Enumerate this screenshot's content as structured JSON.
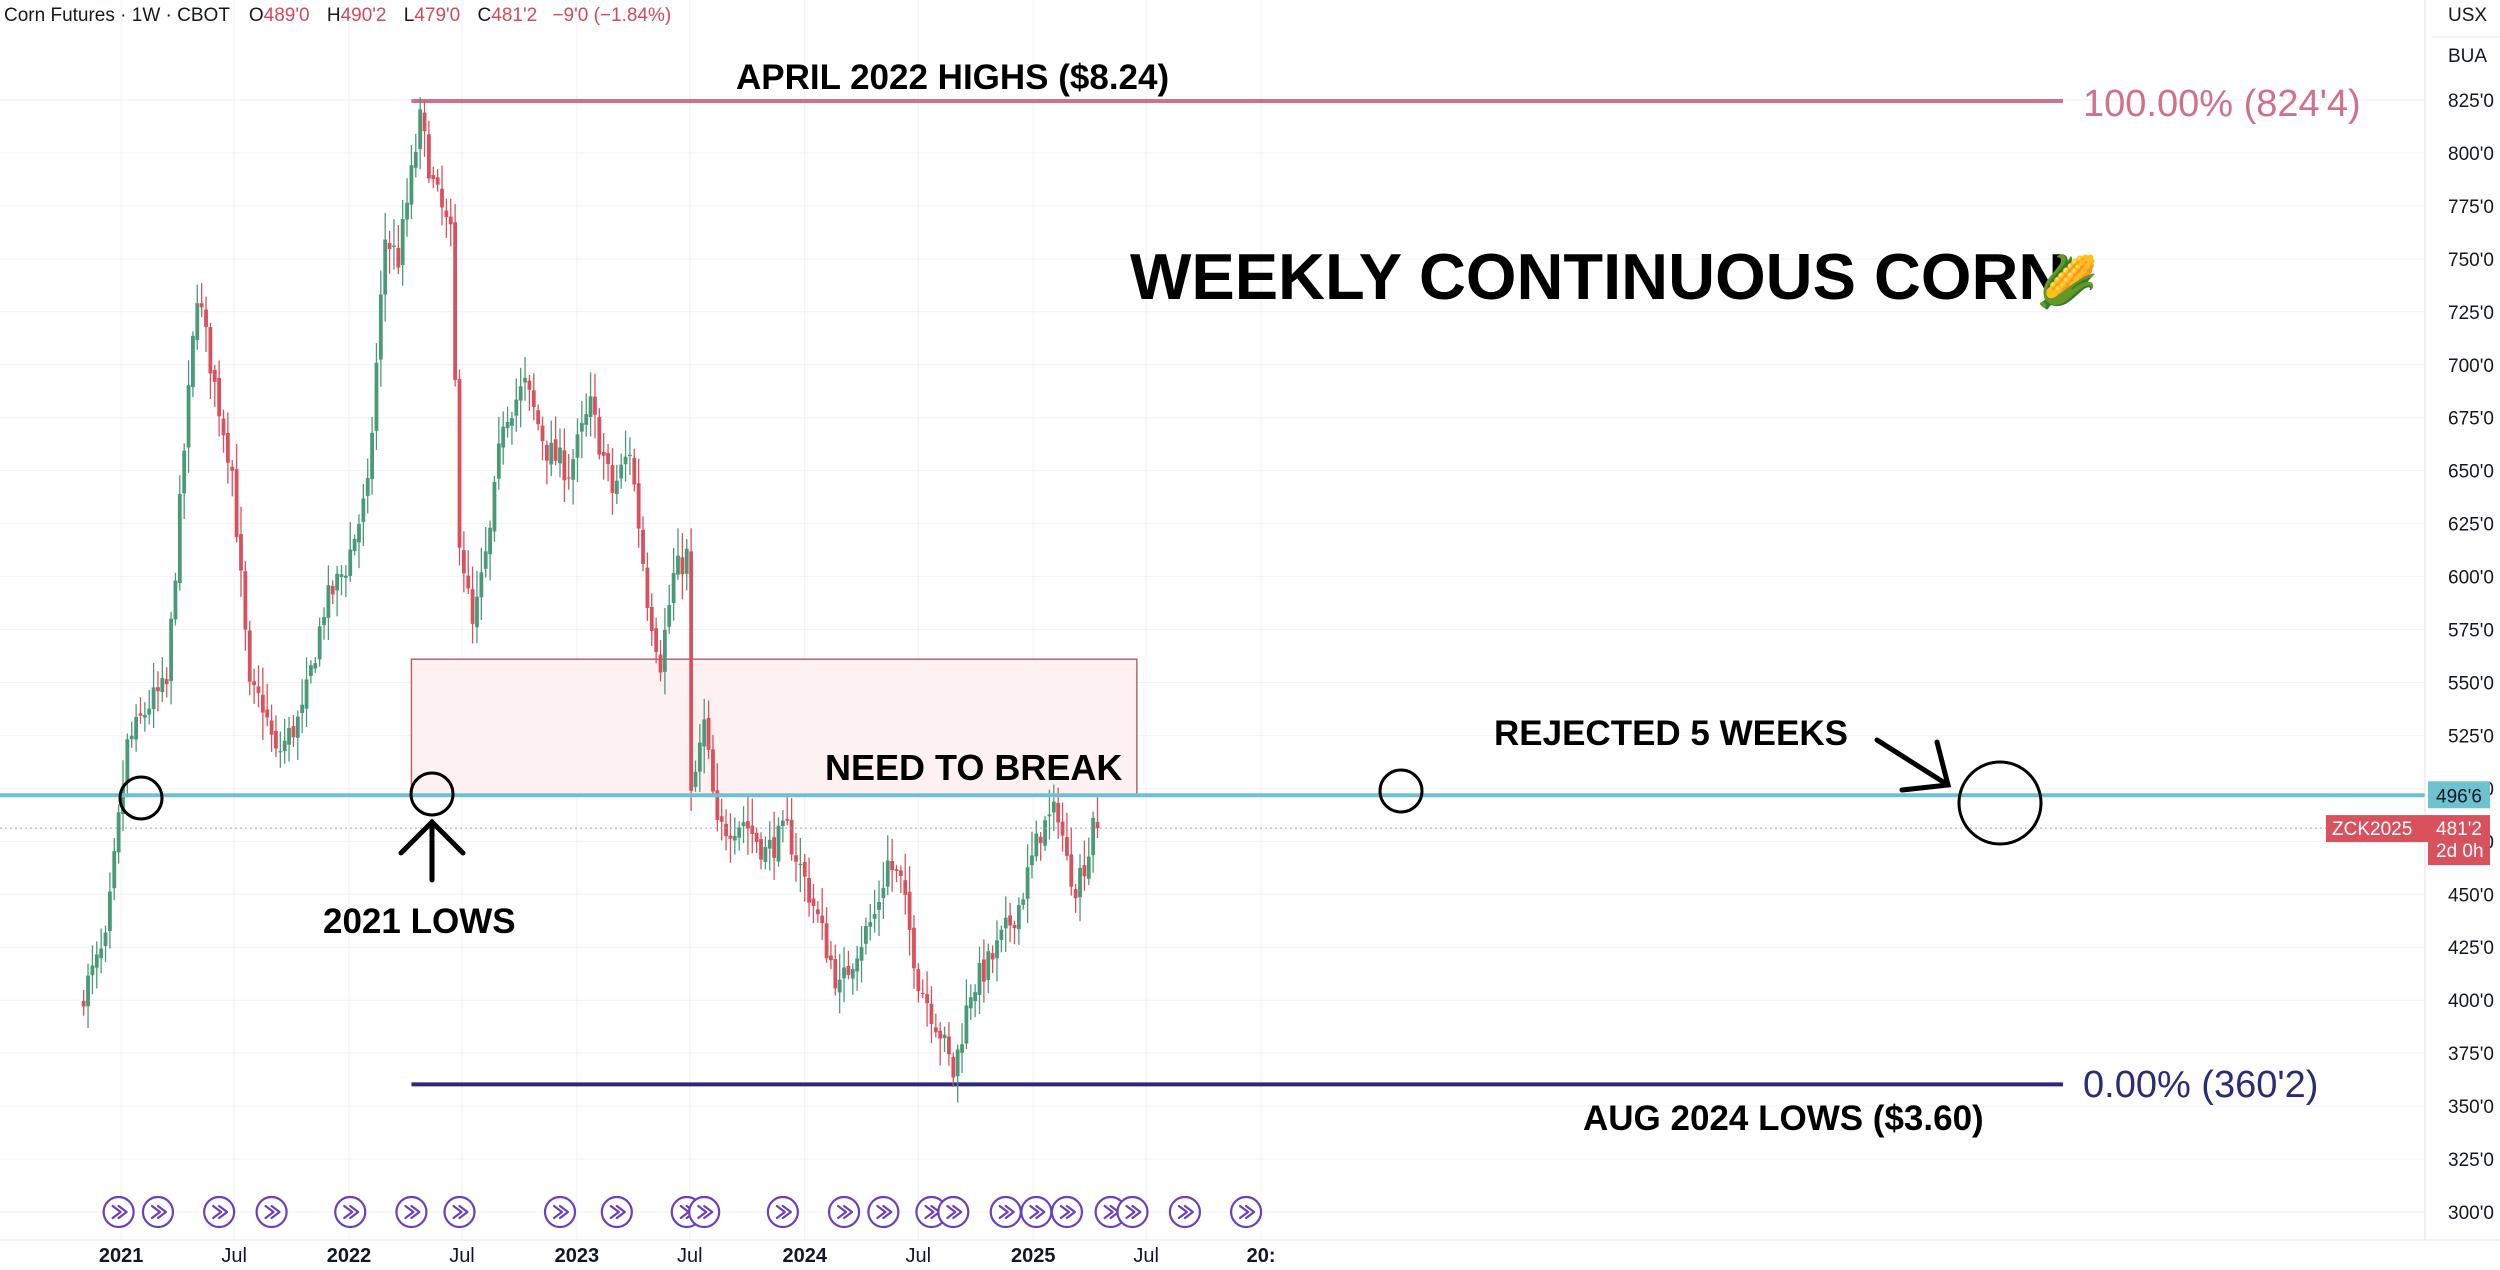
{
  "header": {
    "symbol_desc": "Corn Futures · 1W · CBOT",
    "open_key": "O",
    "open_val": "489'0",
    "high_key": "H",
    "high_val": "490'2",
    "low_key": "L",
    "low_val": "479'0",
    "close_key": "C",
    "close_val": "481'2",
    "change": "−9'0 (−1.84%)"
  },
  "price_axis": {
    "currency": "USX",
    "unit": "BUA",
    "ticks": [
      "825'0",
      "800'0",
      "775'0",
      "750'0",
      "725'0",
      "700'0",
      "675'0",
      "650'0",
      "625'0",
      "600'0",
      "575'0",
      "550'0",
      "525'0",
      "500'0",
      "475'0",
      "450'0",
      "425'0",
      "400'0",
      "375'0",
      "350'0",
      "325'0",
      "300'0"
    ],
    "level_tag": "496'6",
    "symbol_tag": "ZCK2025",
    "last_price_tag": "481'2",
    "countdown_tag": "2d 0h"
  },
  "time_axis": {
    "labels": [
      {
        "text": "2021",
        "year": true
      },
      {
        "text": "Jul",
        "year": false
      },
      {
        "text": "2022",
        "year": true
      },
      {
        "text": "Jul",
        "year": false
      },
      {
        "text": "2023",
        "year": true
      },
      {
        "text": "Jul",
        "year": false
      },
      {
        "text": "2024",
        "year": true
      },
      {
        "text": "Jul",
        "year": false
      },
      {
        "text": "2025",
        "year": true
      },
      {
        "text": "Jul",
        "year": false
      },
      {
        "text": "20:",
        "year": true
      }
    ]
  },
  "annotations": {
    "title": "WEEKLY CONTINUOUS CORN",
    "title_emoji": "🌽",
    "april_highs": "APRIL 2022 HIGHS ($8.24)",
    "aug_lows": "AUG 2024 LOWS ($3.60)",
    "lows_2021": "2021 LOWS",
    "need_to_break": "NEED TO BREAK",
    "rejected": "REJECTED 5 WEEKS",
    "fib_100": "100.00% (824'4)",
    "fib_0": "0.00% (360'2)"
  },
  "colors": {
    "up": "#4a9a7a",
    "down": "#d9515c",
    "support_line": "#6ec1cf",
    "fib_100": "#d0708a",
    "fib_0": "#2b2b78",
    "zone_fill": "#fdf1f1",
    "zone_stroke": "#b9646e",
    "event_icon": "#6a3fc0",
    "last_price_bg": "#d9515c"
  },
  "chart_data": {
    "type": "candlestick",
    "title": "WEEKLY CONTINUOUS CORN",
    "ylim": [
      300,
      840
    ],
    "y_unit": "cents per bushel",
    "support_level": 496.75,
    "last_price": 481.25,
    "fib_high": 824.5,
    "fib_low": 360.25,
    "resistance_zone": [
      497,
      561
    ],
    "ohlc_anchors": [
      {
        "x": "2020-11-02",
        "close": 404
      },
      {
        "x": "2020-12-07",
        "close": 426
      },
      {
        "x": "2020-12-28",
        "close": 484
      },
      {
        "x": "2021-01-11",
        "close": 520
      },
      {
        "x": "2021-02-15",
        "close": 540
      },
      {
        "x": "2021-03-15",
        "close": 548
      },
      {
        "x": "2021-04-12",
        "close": 660
      },
      {
        "x": "2021-05-03",
        "close": 735
      },
      {
        "x": "2021-05-31",
        "close": 690
      },
      {
        "x": "2021-06-28",
        "close": 650
      },
      {
        "x": "2021-07-26",
        "close": 545
      },
      {
        "x": "2021-08-16",
        "close": 540
      },
      {
        "x": "2021-09-06",
        "close": 515
      },
      {
        "x": "2021-10-18",
        "close": 535
      },
      {
        "x": "2021-11-22",
        "close": 585
      },
      {
        "x": "2021-12-27",
        "close": 605
      },
      {
        "x": "2022-01-31",
        "close": 640
      },
      {
        "x": "2022-02-28",
        "close": 760
      },
      {
        "x": "2022-03-21",
        "close": 750
      },
      {
        "x": "2022-04-25",
        "close": 815
      },
      {
        "x": "2022-05-16",
        "close": 785
      },
      {
        "x": "2022-06-13",
        "close": 760
      },
      {
        "x": "2022-06-27",
        "close": 620
      },
      {
        "x": "2022-07-18",
        "close": 575
      },
      {
        "x": "2022-08-15",
        "close": 620
      },
      {
        "x": "2022-09-05",
        "close": 675
      },
      {
        "x": "2022-10-10",
        "close": 690
      },
      {
        "x": "2022-11-14",
        "close": 660
      },
      {
        "x": "2022-12-19",
        "close": 650
      },
      {
        "x": "2023-01-23",
        "close": 680
      },
      {
        "x": "2023-02-27",
        "close": 640
      },
      {
        "x": "2023-03-27",
        "close": 660
      },
      {
        "x": "2023-04-24",
        "close": 590
      },
      {
        "x": "2023-05-15",
        "close": 560
      },
      {
        "x": "2023-06-05",
        "close": 600
      },
      {
        "x": "2023-06-26",
        "close": 610
      },
      {
        "x": "2023-07-03",
        "close": 495
      },
      {
        "x": "2023-07-24",
        "close": 530
      },
      {
        "x": "2023-08-14",
        "close": 480
      },
      {
        "x": "2023-09-25",
        "close": 485
      },
      {
        "x": "2023-10-30",
        "close": 470
      },
      {
        "x": "2023-12-04",
        "close": 480
      },
      {
        "x": "2024-01-15",
        "close": 445
      },
      {
        "x": "2024-02-26",
        "close": 405
      },
      {
        "x": "2024-03-25",
        "close": 425
      },
      {
        "x": "2024-04-22",
        "close": 440
      },
      {
        "x": "2024-05-13",
        "close": 465
      },
      {
        "x": "2024-06-03",
        "close": 455
      },
      {
        "x": "2024-07-01",
        "close": 410
      },
      {
        "x": "2024-08-05",
        "close": 385
      },
      {
        "x": "2024-08-26",
        "close": 365
      },
      {
        "x": "2024-09-23",
        "close": 405
      },
      {
        "x": "2024-10-28",
        "close": 420
      },
      {
        "x": "2024-12-09",
        "close": 445
      },
      {
        "x": "2025-01-13",
        "close": 480
      },
      {
        "x": "2025-02-10",
        "close": 490
      },
      {
        "x": "2025-02-24",
        "close": 465
      },
      {
        "x": "2025-03-10",
        "close": 455
      },
      {
        "x": "2025-03-31",
        "close": 470
      },
      {
        "x": "2025-04-07",
        "close": 489
      },
      {
        "x": "2025-04-14",
        "close": 481.25
      }
    ]
  }
}
